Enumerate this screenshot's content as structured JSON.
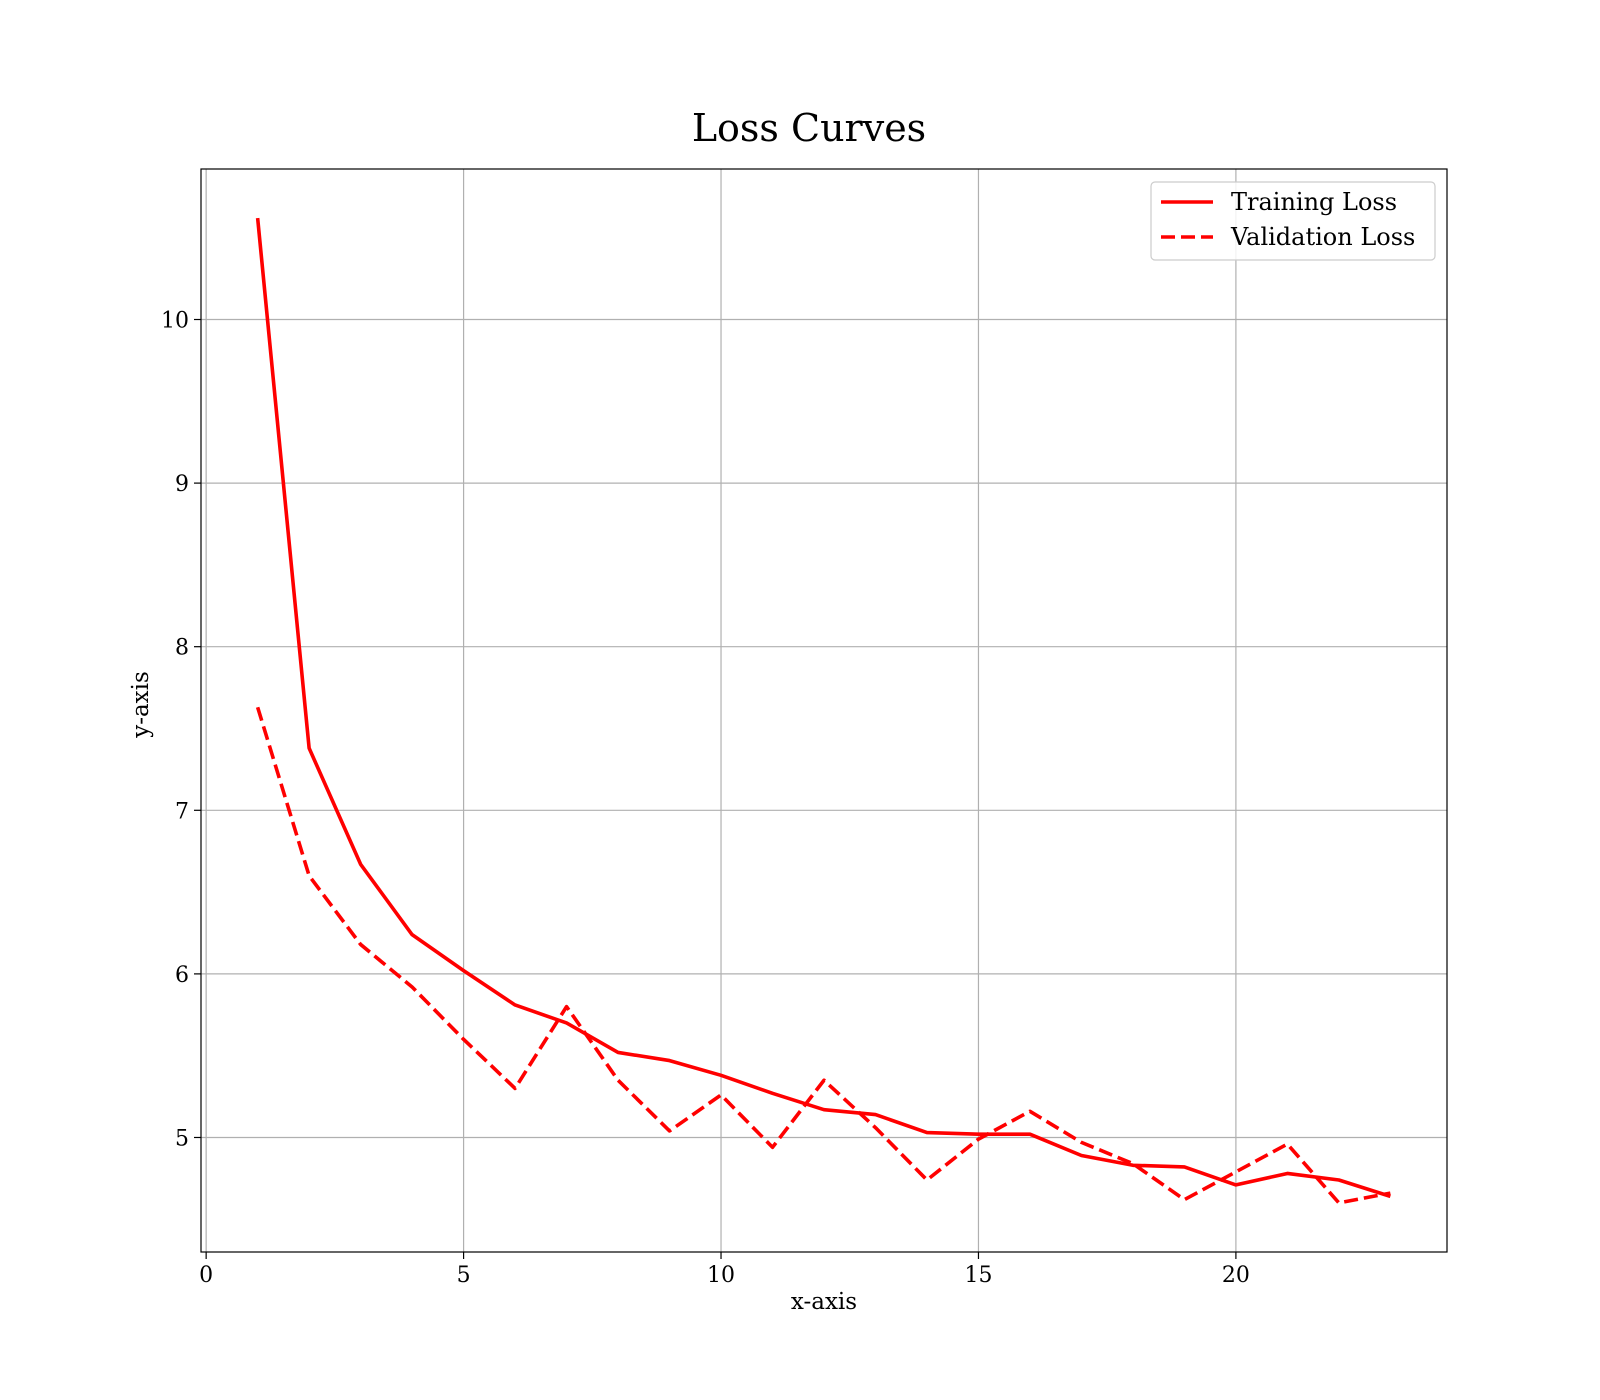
{
  "chart_data": {
    "type": "line",
    "title": "Loss Curves",
    "xlabel": "x-axis",
    "ylabel": "y-axis",
    "xlim": [
      -0.1,
      24.1
    ],
    "ylim": [
      4.3,
      10.92
    ],
    "xticks": [
      0,
      5,
      10,
      15,
      20
    ],
    "yticks": [
      5,
      6,
      7,
      8,
      9,
      10
    ],
    "grid": true,
    "legend_position": "top-right",
    "x": [
      1,
      2,
      3,
      4,
      5,
      6,
      7,
      8,
      9,
      10,
      11,
      12,
      13,
      14,
      15,
      16,
      17,
      18,
      19,
      20,
      21,
      22,
      23
    ],
    "series": [
      {
        "name": "Training Loss",
        "style": "solid",
        "color": "#ff0000",
        "values": [
          10.62,
          7.38,
          6.67,
          6.24,
          6.02,
          5.81,
          5.7,
          5.52,
          5.47,
          5.38,
          5.27,
          5.17,
          5.14,
          5.03,
          5.02,
          5.02,
          4.89,
          4.83,
          4.82,
          4.71,
          4.78,
          4.74,
          4.64
        ]
      },
      {
        "name": "Validation Loss",
        "style": "dashed",
        "color": "#ff0000",
        "values": [
          7.63,
          6.6,
          6.18,
          5.92,
          5.6,
          5.3,
          5.8,
          5.35,
          5.04,
          5.26,
          4.94,
          5.35,
          5.06,
          4.74,
          4.99,
          5.16,
          4.97,
          4.84,
          4.62,
          4.79,
          4.96,
          4.6,
          4.66
        ]
      }
    ]
  }
}
